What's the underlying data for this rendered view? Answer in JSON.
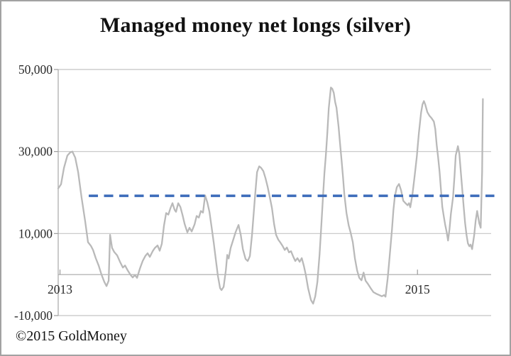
{
  "window": {
    "background_color": "#ffffff",
    "border_color": "#a2a2a2"
  },
  "chart_data": {
    "type": "line",
    "title": "Managed money net longs (silver)",
    "xlabel": "",
    "ylabel": "",
    "grid": true,
    "legend": "none",
    "ylim": [
      -10000,
      50000
    ],
    "xlim_years": [
      2013.0,
      2015.41
    ],
    "y_ticks": [
      {
        "label": "50,000",
        "value": 50000
      },
      {
        "label": "30,000",
        "value": 30000
      },
      {
        "label": "10,000",
        "value": 10000
      },
      {
        "label": "-10,000",
        "value": -10000
      }
    ],
    "x_ticks": [
      {
        "label": "2013",
        "year": 2013.01
      },
      {
        "label": "2015",
        "year": 2015.0
      }
    ],
    "zero_axis_value": 0,
    "average_line": {
      "value": 19200,
      "from_year": 2013.17,
      "to_year": 2015.428,
      "style": "dashed",
      "color": "#3b6bba"
    },
    "series": [
      {
        "name": "Managed money net longs (silver)",
        "color": "#b9b9b9",
        "points": [
          [
            2013.0,
            21000
          ],
          [
            2013.016,
            22000
          ],
          [
            2013.032,
            26000
          ],
          [
            2013.051,
            29000
          ],
          [
            2013.067,
            29800
          ],
          [
            2013.079,
            30000
          ],
          [
            2013.095,
            28500
          ],
          [
            2013.111,
            25000
          ],
          [
            2013.13,
            18800
          ],
          [
            2013.15,
            13000
          ],
          [
            2013.166,
            7900
          ],
          [
            2013.182,
            7000
          ],
          [
            2013.194,
            6000
          ],
          [
            2013.209,
            4000
          ],
          [
            2013.225,
            2200
          ],
          [
            2013.241,
            0
          ],
          [
            2013.257,
            -1800
          ],
          [
            2013.269,
            -2800
          ],
          [
            2013.281,
            -1500
          ],
          [
            2013.289,
            9700
          ],
          [
            2013.3,
            6500
          ],
          [
            2013.312,
            5500
          ],
          [
            2013.328,
            4700
          ],
          [
            2013.344,
            3100
          ],
          [
            2013.36,
            1700
          ],
          [
            2013.372,
            2200
          ],
          [
            2013.387,
            1000
          ],
          [
            2013.403,
            -100
          ],
          [
            2013.415,
            -700
          ],
          [
            2013.427,
            -100
          ],
          [
            2013.439,
            -800
          ],
          [
            2013.455,
            1500
          ],
          [
            2013.47,
            3300
          ],
          [
            2013.486,
            4600
          ],
          [
            2013.498,
            5200
          ],
          [
            2013.51,
            4300
          ],
          [
            2013.526,
            5700
          ],
          [
            2013.538,
            6500
          ],
          [
            2013.553,
            7100
          ],
          [
            2013.565,
            5800
          ],
          [
            2013.577,
            7500
          ],
          [
            2013.589,
            12000
          ],
          [
            2013.601,
            15000
          ],
          [
            2013.613,
            14600
          ],
          [
            2013.625,
            16200
          ],
          [
            2013.636,
            17400
          ],
          [
            2013.648,
            15800
          ],
          [
            2013.656,
            15300
          ],
          [
            2013.668,
            17400
          ],
          [
            2013.68,
            16500
          ],
          [
            2013.692,
            14500
          ],
          [
            2013.704,
            12300
          ],
          [
            2013.719,
            10300
          ],
          [
            2013.731,
            11400
          ],
          [
            2013.743,
            10500
          ],
          [
            2013.759,
            12200
          ],
          [
            2013.771,
            14300
          ],
          [
            2013.783,
            13900
          ],
          [
            2013.794,
            15500
          ],
          [
            2013.806,
            15100
          ],
          [
            2013.818,
            19300
          ],
          [
            2013.83,
            17600
          ],
          [
            2013.842,
            15300
          ],
          [
            2013.854,
            11500
          ],
          [
            2013.866,
            7700
          ],
          [
            2013.877,
            3800
          ],
          [
            2013.889,
            -300
          ],
          [
            2013.901,
            -3300
          ],
          [
            2013.909,
            -3800
          ],
          [
            2013.921,
            -3000
          ],
          [
            2013.933,
            1000
          ],
          [
            2013.941,
            4800
          ],
          [
            2013.949,
            3900
          ],
          [
            2013.96,
            6500
          ],
          [
            2013.976,
            8700
          ],
          [
            2013.988,
            10400
          ],
          [
            2014.004,
            12100
          ],
          [
            2014.016,
            9700
          ],
          [
            2014.028,
            6200
          ],
          [
            2014.043,
            3800
          ],
          [
            2014.055,
            3300
          ],
          [
            2014.067,
            4500
          ],
          [
            2014.079,
            9700
          ],
          [
            2014.095,
            18800
          ],
          [
            2014.107,
            25000
          ],
          [
            2014.119,
            26400
          ],
          [
            2014.13,
            26000
          ],
          [
            2014.142,
            25200
          ],
          [
            2014.154,
            23500
          ],
          [
            2014.166,
            21400
          ],
          [
            2014.178,
            18800
          ],
          [
            2014.19,
            16200
          ],
          [
            2014.202,
            12300
          ],
          [
            2014.213,
            9700
          ],
          [
            2014.225,
            8500
          ],
          [
            2014.237,
            7800
          ],
          [
            2014.249,
            7000
          ],
          [
            2014.261,
            6000
          ],
          [
            2014.273,
            6600
          ],
          [
            2014.285,
            5400
          ],
          [
            2014.296,
            5700
          ],
          [
            2014.308,
            4400
          ],
          [
            2014.32,
            3300
          ],
          [
            2014.332,
            4000
          ],
          [
            2014.344,
            3100
          ],
          [
            2014.356,
            4000
          ],
          [
            2014.368,
            2000
          ],
          [
            2014.379,
            -200
          ],
          [
            2014.391,
            -3300
          ],
          [
            2014.407,
            -6200
          ],
          [
            2014.419,
            -7100
          ],
          [
            2014.431,
            -5300
          ],
          [
            2014.443,
            -1800
          ],
          [
            2014.455,
            5000
          ],
          [
            2014.466,
            13000
          ],
          [
            2014.474,
            19000
          ],
          [
            2014.482,
            24700
          ],
          [
            2014.49,
            29000
          ],
          [
            2014.498,
            34500
          ],
          [
            2014.506,
            40500
          ],
          [
            2014.518,
            45600
          ],
          [
            2014.526,
            45300
          ],
          [
            2014.534,
            44300
          ],
          [
            2014.542,
            42000
          ],
          [
            2014.549,
            40700
          ],
          [
            2014.561,
            36000
          ],
          [
            2014.569,
            32000
          ],
          [
            2014.577,
            28000
          ],
          [
            2014.585,
            24000
          ],
          [
            2014.593,
            19500
          ],
          [
            2014.605,
            15000
          ],
          [
            2014.617,
            12000
          ],
          [
            2014.628,
            10200
          ],
          [
            2014.64,
            7900
          ],
          [
            2014.652,
            3900
          ],
          [
            2014.664,
            1000
          ],
          [
            2014.676,
            -800
          ],
          [
            2014.688,
            -1400
          ],
          [
            2014.7,
            500
          ],
          [
            2014.711,
            -1500
          ],
          [
            2014.723,
            -2200
          ],
          [
            2014.739,
            -3300
          ],
          [
            2014.755,
            -4300
          ],
          [
            2014.771,
            -4700
          ],
          [
            2014.787,
            -5000
          ],
          [
            2014.802,
            -5300
          ],
          [
            2014.814,
            -5000
          ],
          [
            2014.822,
            -5400
          ],
          [
            2014.834,
            -1000
          ],
          [
            2014.842,
            2800
          ],
          [
            2014.85,
            7000
          ],
          [
            2014.858,
            11000
          ],
          [
            2014.866,
            15700
          ],
          [
            2014.874,
            19000
          ],
          [
            2014.885,
            21300
          ],
          [
            2014.897,
            22100
          ],
          [
            2014.909,
            20500
          ],
          [
            2014.921,
            18000
          ],
          [
            2014.933,
            17400
          ],
          [
            2014.945,
            16900
          ],
          [
            2014.953,
            17400
          ],
          [
            2014.96,
            16400
          ],
          [
            2014.972,
            19500
          ],
          [
            2014.984,
            24000
          ],
          [
            2014.996,
            28600
          ],
          [
            2015.008,
            34500
          ],
          [
            2015.02,
            39500
          ],
          [
            2015.028,
            41500
          ],
          [
            2015.036,
            42300
          ],
          [
            2015.043,
            41500
          ],
          [
            2015.055,
            39600
          ],
          [
            2015.067,
            38700
          ],
          [
            2015.079,
            38100
          ],
          [
            2015.091,
            37300
          ],
          [
            2015.099,
            35500
          ],
          [
            2015.107,
            31600
          ],
          [
            2015.115,
            28600
          ],
          [
            2015.123,
            25000
          ],
          [
            2015.131,
            20500
          ],
          [
            2015.138,
            16500
          ],
          [
            2015.146,
            14300
          ],
          [
            2015.154,
            12200
          ],
          [
            2015.162,
            10500
          ],
          [
            2015.17,
            8300
          ],
          [
            2015.178,
            11000
          ],
          [
            2015.186,
            14800
          ],
          [
            2015.198,
            18800
          ],
          [
            2015.206,
            24000
          ],
          [
            2015.213,
            29000
          ],
          [
            2015.225,
            31300
          ],
          [
            2015.233,
            29500
          ],
          [
            2015.241,
            25200
          ],
          [
            2015.249,
            21000
          ],
          [
            2015.257,
            16600
          ],
          [
            2015.265,
            12600
          ],
          [
            2015.273,
            9700
          ],
          [
            2015.281,
            7600
          ],
          [
            2015.289,
            6900
          ],
          [
            2015.296,
            7300
          ],
          [
            2015.304,
            6200
          ],
          [
            2015.316,
            9700
          ],
          [
            2015.324,
            13100
          ],
          [
            2015.332,
            15500
          ],
          [
            2015.344,
            12500
          ],
          [
            2015.352,
            11400
          ],
          [
            2015.36,
            25000
          ],
          [
            2015.364,
            42800
          ]
        ]
      }
    ],
    "colors": {
      "gridline": "#c4c4c4",
      "axis": "#a8a8a8",
      "tick": "#9a9a9a",
      "tick_label": "#2b2b2b",
      "series": "#b9b9b9",
      "average_line": "#3b6bba"
    }
  },
  "footer": {
    "credit": "©2015 GoldMoney"
  }
}
